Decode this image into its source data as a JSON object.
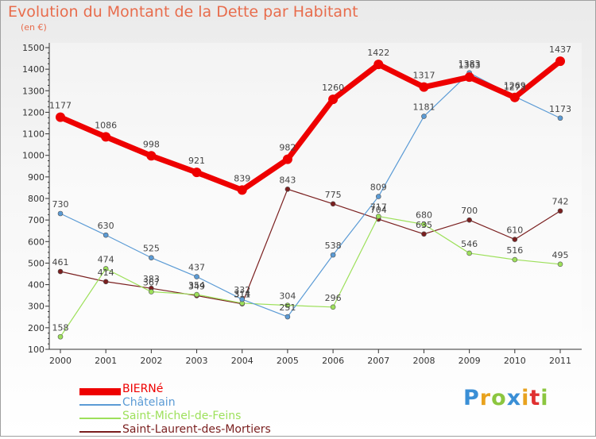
{
  "title": "Evolution du Montant de la Dette par Habitant",
  "subtitle": "(en €)",
  "logo": {
    "letters": [
      "P",
      "r",
      "o",
      "x",
      "i",
      "t",
      "i"
    ],
    "colors": [
      "#3a8fd6",
      "#e8a21e",
      "#8cc63f",
      "#3a8fd6",
      "#e8a21e",
      "#e03030",
      "#8cc63f"
    ]
  },
  "chart_data": {
    "type": "line",
    "title": "Evolution du Montant de la Dette par Habitant",
    "ylabel": "(en €)",
    "xlabel": "",
    "x": [
      "2000",
      "2001",
      "2002",
      "2003",
      "2004",
      "2005",
      "2006",
      "2007",
      "2008",
      "2009",
      "2010",
      "2011"
    ],
    "yticks": [
      100,
      200,
      300,
      400,
      500,
      600,
      700,
      800,
      900,
      1000,
      1100,
      1200,
      1300,
      1400,
      1500
    ],
    "ylim": [
      100,
      1500
    ],
    "grid": false,
    "legend_position": "bottom-left",
    "series": [
      {
        "name": "BIERNé",
        "color": "#ee0000",
        "values": [
          1177,
          1086,
          998,
          921,
          839,
          982,
          1260,
          1422,
          1317,
          1363,
          1269,
          1437
        ]
      },
      {
        "name": "Châtelain",
        "color": "#5b9bd5",
        "values": [
          730,
          630,
          525,
          437,
          332,
          251,
          538,
          809,
          1181,
          1383,
          1273,
          1173
        ]
      },
      {
        "name": "Saint-Michel-de-Feins",
        "color": "#9de05a",
        "values": [
          158,
          474,
          367,
          354,
          314,
          304,
          296,
          717,
          680,
          546,
          516,
          495
        ]
      },
      {
        "name": "Saint-Laurent-des-Mortiers",
        "color": "#7a1f1f",
        "values": [
          461,
          414,
          383,
          349,
          311,
          843,
          775,
          704,
          635,
          700,
          610,
          742
        ]
      }
    ]
  }
}
